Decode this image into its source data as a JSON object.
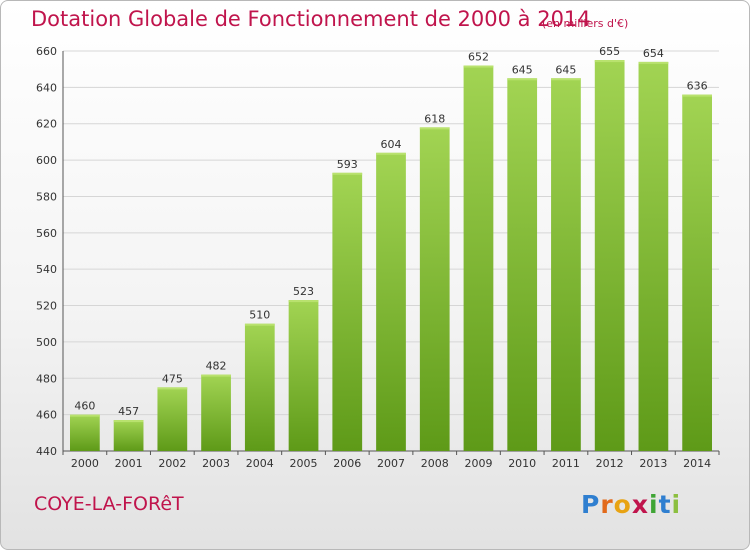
{
  "header": {
    "title": "Dotation Globale de Fonctionnement de 2000 à 2014",
    "unit_note": "(en milliers d'€)"
  },
  "footer": {
    "commune": "COYE-LA-FORêT",
    "brand": "Proxiti"
  },
  "colors": {
    "title": "#c0144c",
    "bar_light": "#9fd24f",
    "bar_dark": "#5f9a1a",
    "grid": "#d6d6d6"
  },
  "chart_data": {
    "type": "bar",
    "title": "Dotation Globale de Fonctionnement de 2000 à 2014",
    "subtitle": "(en milliers d'€)",
    "xlabel": "",
    "ylabel": "",
    "categories": [
      "2000",
      "2001",
      "2002",
      "2003",
      "2004",
      "2005",
      "2006",
      "2007",
      "2008",
      "2009",
      "2010",
      "2011",
      "2012",
      "2013",
      "2014"
    ],
    "values": [
      460,
      457,
      475,
      482,
      510,
      523,
      593,
      604,
      618,
      652,
      645,
      645,
      655,
      654,
      636
    ],
    "ylim": [
      440,
      660
    ],
    "yticks": [
      440,
      460,
      480,
      500,
      520,
      540,
      560,
      580,
      600,
      620,
      640,
      660
    ],
    "grid": true,
    "legend": "none"
  }
}
